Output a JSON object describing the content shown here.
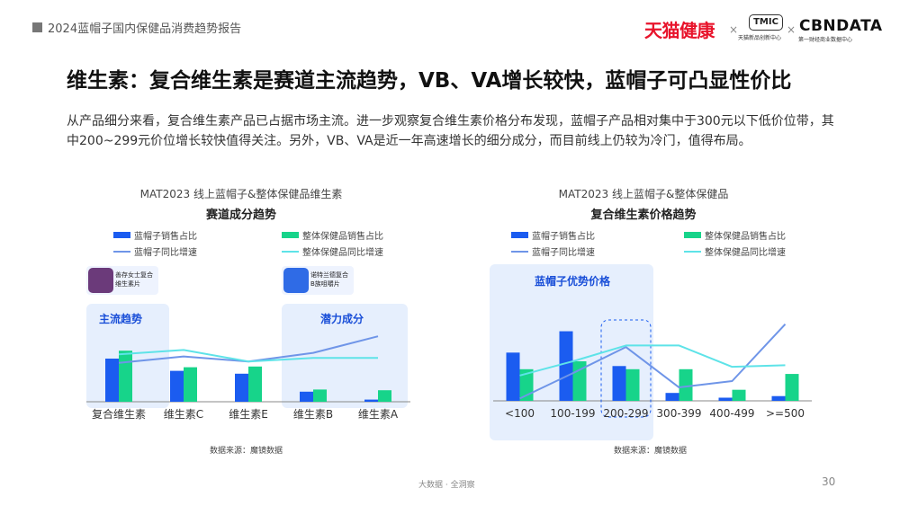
{
  "header": {
    "report_title": "2024蓝帽子国内保健品消费趋势报告"
  },
  "logos": {
    "tmall_health": "天猫健康",
    "separator": "×",
    "tmic": "TMIC",
    "tmic_sub": "天猫新品创新中心",
    "cbndata": "CBNDATA",
    "cbndata_sub": "第一财经商业数据中心"
  },
  "title": "维生素：复合维生素是赛道主流趋势，VB、VA增长较快，蓝帽子可凸显性价比",
  "paragraph": "从产品细分来看，复合维生素产品已占据市场主流。进一步观察复合维生素价格分布发现，蓝帽子产品相对集中于300元以下低价位带，其中200~299元价位增长较快值得关注。另外，VB、VA是近一年高速增长的细分成分，而目前线上仍较为冷门，值得布局。",
  "colors": {
    "blue_bar": "#1b5cf0",
    "green_bar": "#17d48a",
    "blue_line": "#6f95e8",
    "cyan_line": "#5ee3e8",
    "highlight": "#e6effd",
    "accent_red": "#e8132b"
  },
  "legend": {
    "bluehat_share": "蓝帽子销售占比",
    "overall_share": "整体保健品销售占比",
    "bluehat_growth": "蓝帽子同比增速",
    "overall_growth": "整体保健品同比增速"
  },
  "chart_left": {
    "title_line1": "MAT2023 线上蓝帽子&整体保健品维生素",
    "title_line2": "赛道成分趋势",
    "highlight_main": "主流趋势",
    "highlight_potential": "潜力成分",
    "product1": "善存女士复合维生素片",
    "product2": "诺特兰德复合B族咀嚼片",
    "source": "数据来源：魔镜数据"
  },
  "chart_right": {
    "title_line1": "MAT2023 线上蓝帽子&整体保健品",
    "title_line2": "复合维生素价格趋势",
    "highlight_label": "蓝帽子优势价格",
    "source": "数据来源：魔镜数据"
  },
  "footer": {
    "text": "大数据 · 全洞察",
    "page": "30"
  },
  "chart_data": [
    {
      "type": "bar",
      "title": "MAT2023 线上蓝帽子&整体保健品维生素 赛道成分趋势",
      "categories": [
        "复合维生素",
        "维生素C",
        "维生素E",
        "维生素B",
        "维生素A"
      ],
      "series": [
        {
          "name": "蓝帽子销售占比",
          "kind": "bar",
          "values": [
            60,
            43,
            39,
            14,
            3
          ]
        },
        {
          "name": "整体保健品销售占比",
          "kind": "bar",
          "values": [
            71,
            48,
            49,
            17,
            16
          ]
        },
        {
          "name": "蓝帽子同比增速",
          "kind": "line",
          "values": [
            54,
            63,
            56,
            68,
            91
          ]
        },
        {
          "name": "整体保健品同比增速",
          "kind": "line",
          "values": [
            66,
            72,
            56,
            61,
            61
          ]
        }
      ],
      "ylim": [
        0,
        100
      ],
      "grid": false,
      "legend_position": "top"
    },
    {
      "type": "bar",
      "title": "MAT2023 线上蓝帽子&整体保健品 复合维生素价格趋势",
      "categories": [
        "<100",
        "100-199",
        "200-299",
        "300-399",
        "400-499",
        ">=500"
      ],
      "series": [
        {
          "name": "蓝帽子销售占比",
          "kind": "bar",
          "values": [
            61,
            88,
            44,
            10,
            4,
            6
          ]
        },
        {
          "name": "整体保健品销售占比",
          "kind": "bar",
          "values": [
            40,
            50,
            40,
            40,
            14,
            34
          ]
        },
        {
          "name": "蓝帽子同比增速",
          "kind": "line",
          "values": [
            3,
            35,
            68,
            17,
            25,
            97
          ]
        },
        {
          "name": "整体保健品同比增速",
          "kind": "line",
          "values": [
            32,
            50,
            70,
            70,
            43,
            45
          ]
        }
      ],
      "ylim": [
        0,
        100
      ],
      "grid": false,
      "legend_position": "top"
    }
  ]
}
